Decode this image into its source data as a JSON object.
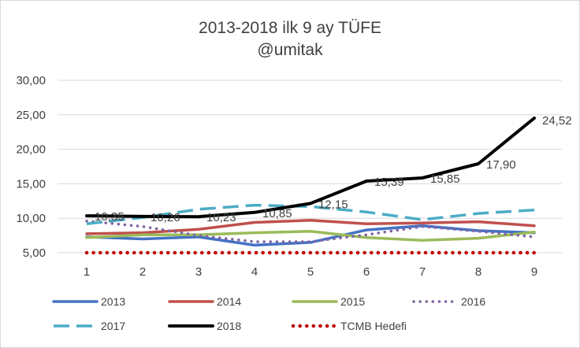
{
  "chart_data": {
    "type": "line",
    "title": "2013-2018 ilk 9 ay TÜFE",
    "subtitle": "@umitak",
    "xlabel": "",
    "ylabel": "",
    "categories": [
      "1",
      "2",
      "3",
      "4",
      "5",
      "6",
      "7",
      "8",
      "9"
    ],
    "ylim": [
      5,
      30
    ],
    "y_ticks": [
      "5,00",
      "10,00",
      "15,00",
      "20,00",
      "25,00",
      "30,00"
    ],
    "y_tick_values": [
      5,
      10,
      15,
      20,
      25,
      30
    ],
    "grid": "horizontal",
    "legend_position": "bottom",
    "series": [
      {
        "name": "2013",
        "color": "#4472c4",
        "style": "solid",
        "values": [
          7.3,
          7.0,
          7.3,
          6.1,
          6.5,
          8.3,
          8.9,
          8.2,
          7.9
        ]
      },
      {
        "name": "2014",
        "color": "#c0504d",
        "style": "solid",
        "values": [
          7.75,
          7.9,
          8.4,
          9.4,
          9.7,
          9.2,
          9.3,
          9.5,
          8.9
        ]
      },
      {
        "name": "2015",
        "color": "#9bbb59",
        "style": "solid",
        "values": [
          7.2,
          7.6,
          7.6,
          7.9,
          8.1,
          7.2,
          6.8,
          7.1,
          8.0
        ]
      },
      {
        "name": "2016",
        "color": "#8064a2",
        "style": "dotted",
        "values": [
          9.6,
          8.8,
          7.5,
          6.6,
          6.6,
          7.6,
          8.8,
          8.1,
          7.3
        ]
      },
      {
        "name": "2017",
        "color": "#4bacc6",
        "style": "dashed",
        "values": [
          9.2,
          10.1,
          11.3,
          11.9,
          11.7,
          10.9,
          9.8,
          10.7,
          11.2
        ]
      },
      {
        "name": "2018",
        "color": "#000000",
        "style": "solid",
        "values": [
          10.35,
          10.26,
          10.23,
          10.85,
          12.15,
          15.39,
          15.85,
          17.9,
          24.52
        ],
        "data_labels": [
          "10,35",
          "10,26",
          "10,23",
          "10,85",
          "12,15",
          "15,39",
          "15,85",
          "17,90",
          "24,52"
        ]
      },
      {
        "name": "TCMB Hedefi",
        "color": "#c00000",
        "style": "dotted-heavy",
        "values": [
          5,
          5,
          5,
          5,
          5,
          5,
          5,
          5,
          5
        ]
      }
    ]
  }
}
